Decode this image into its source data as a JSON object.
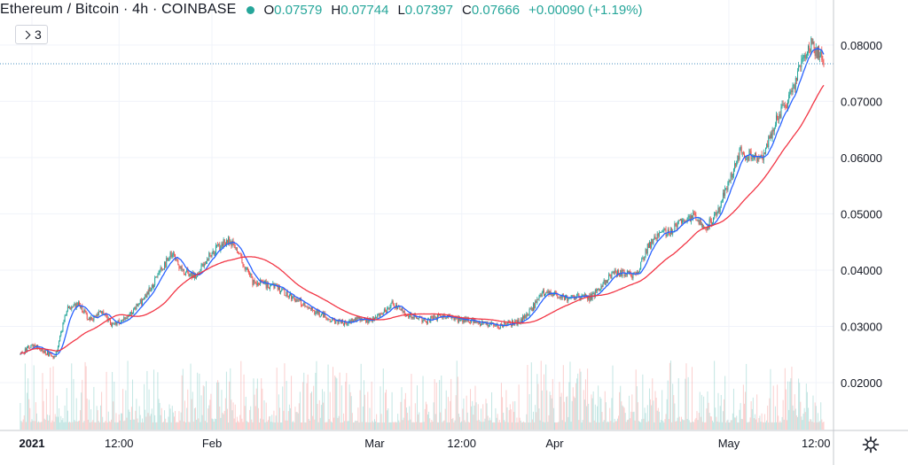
{
  "header": {
    "title": "Ethereum / Bitcoin · 4h · COINBASE",
    "status_color": "#26a69a",
    "ohlc": {
      "open_label": "O",
      "open": "0.07579",
      "high_label": "H",
      "high": "0.07744",
      "low_label": "L",
      "low": "0.07397",
      "close_label": "C",
      "close": "0.07666",
      "change": "+0.00090 (+1.19%)"
    },
    "collapse_count": "3",
    "collapse_icon": "chevron-down-icon"
  },
  "settings_icon": "gear-icon",
  "colors": {
    "up": "#26a69a",
    "down": "#ef5350",
    "ma_fast": "#2962ff",
    "ma_slow": "#f23645",
    "last_price_line": "#4a90c2"
  },
  "chart_data": {
    "type": "candlestick",
    "symbol": "Ethereum / Bitcoin",
    "interval": "4h",
    "exchange": "COINBASE",
    "y_axis": {
      "side": "right",
      "range": [
        0.0115,
        0.088
      ],
      "ticks": [
        "0.02000",
        "0.03000",
        "0.04000",
        "0.05000",
        "0.06000",
        "0.07000",
        "0.08000"
      ]
    },
    "x_axis": {
      "labels": [
        {
          "label": "2021",
          "date": "2021-01-01",
          "bold": true
        },
        {
          "label": "12:00",
          "date": "2021-01-16"
        },
        {
          "label": "Feb",
          "date": "2021-02-01"
        },
        {
          "label": "Mar",
          "date": "2021-03-01"
        },
        {
          "label": "12:00",
          "date": "2021-03-16"
        },
        {
          "label": "Apr",
          "date": "2021-04-01"
        },
        {
          "label": "May",
          "date": "2021-05-01"
        },
        {
          "label": "12:00",
          "date": "2021-05-16"
        }
      ]
    },
    "last_price": 0.07666,
    "close_series": {
      "dates": [
        "2020-12-30",
        "2021-01-01",
        "2021-01-03",
        "2021-01-05",
        "2021-01-07",
        "2021-01-09",
        "2021-01-11",
        "2021-01-13",
        "2021-01-15",
        "2021-01-17",
        "2021-01-19",
        "2021-01-21",
        "2021-01-23",
        "2021-01-25",
        "2021-01-27",
        "2021-01-29",
        "2021-01-31",
        "2021-02-02",
        "2021-02-04",
        "2021-02-06",
        "2021-02-08",
        "2021-02-10",
        "2021-02-12",
        "2021-02-14",
        "2021-02-16",
        "2021-02-18",
        "2021-02-20",
        "2021-02-22",
        "2021-02-24",
        "2021-02-26",
        "2021-02-28",
        "2021-03-02",
        "2021-03-04",
        "2021-03-06",
        "2021-03-08",
        "2021-03-10",
        "2021-03-12",
        "2021-03-14",
        "2021-03-16",
        "2021-03-18",
        "2021-03-20",
        "2021-03-22",
        "2021-03-24",
        "2021-03-26",
        "2021-03-28",
        "2021-03-30",
        "2021-04-01",
        "2021-04-03",
        "2021-04-05",
        "2021-04-07",
        "2021-04-09",
        "2021-04-11",
        "2021-04-13",
        "2021-04-15",
        "2021-04-17",
        "2021-04-19",
        "2021-04-21",
        "2021-04-23",
        "2021-04-25",
        "2021-04-27",
        "2021-04-29",
        "2021-05-01",
        "2021-05-03",
        "2021-05-05",
        "2021-05-07",
        "2021-05-09",
        "2021-05-11",
        "2021-05-13",
        "2021-05-15",
        "2021-05-17",
        "2021-05-18"
      ],
      "values": [
        0.025,
        0.0268,
        0.0255,
        0.0245,
        0.033,
        0.034,
        0.031,
        0.0325,
        0.03,
        0.0315,
        0.0335,
        0.036,
        0.0395,
        0.043,
        0.04,
        0.0388,
        0.042,
        0.044,
        0.0455,
        0.042,
        0.038,
        0.0375,
        0.037,
        0.0355,
        0.0345,
        0.033,
        0.032,
        0.031,
        0.0305,
        0.0315,
        0.031,
        0.032,
        0.034,
        0.0325,
        0.0315,
        0.031,
        0.0318,
        0.0315,
        0.0312,
        0.0308,
        0.0305,
        0.03,
        0.0305,
        0.0308,
        0.033,
        0.036,
        0.0355,
        0.035,
        0.0355,
        0.035,
        0.037,
        0.0395,
        0.0395,
        0.039,
        0.044,
        0.0465,
        0.047,
        0.0485,
        0.05,
        0.0475,
        0.05,
        0.056,
        0.061,
        0.06,
        0.0605,
        0.066,
        0.07,
        0.075,
        0.08,
        0.078,
        0.07666
      ]
    },
    "indicators": [
      "moving average (blue)",
      "moving average (red)"
    ]
  }
}
